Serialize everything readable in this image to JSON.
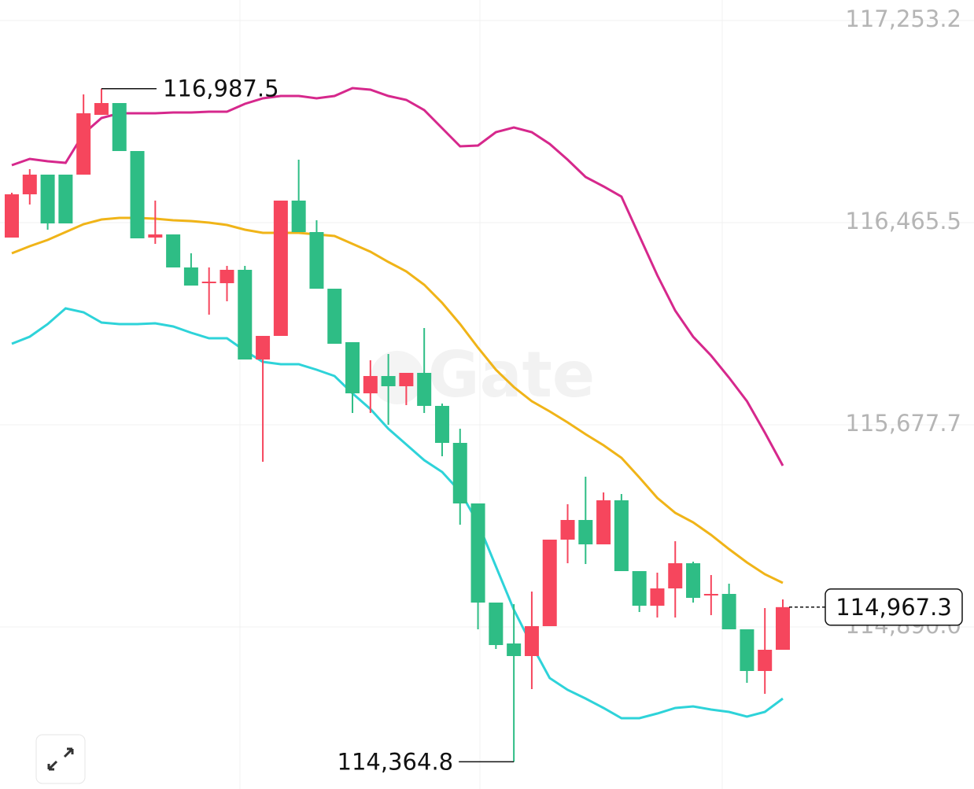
{
  "chart_data": {
    "type": "candlestick",
    "watermark": "Gate",
    "ylim": [
      114258.7,
      117332.9
    ],
    "yticks": [
      {
        "value": 117253.2,
        "label": "117,253.2"
      },
      {
        "value": 116465.5,
        "label": "116,465.5"
      },
      {
        "value": 115677.7,
        "label": "115,677.7"
      },
      {
        "value": 114890.0,
        "label": "114,890.0"
      }
    ],
    "grid": true,
    "up_color": "#f6465d",
    "down_color": "#2ebd85",
    "open": [
      116407.3,
      116575.8,
      116652.5,
      116652.5,
      116652.5,
      116885.4,
      116931.4,
      116744.4,
      116407.3,
      116419.5,
      116290.8,
      116229.5,
      116229.5,
      116281.6,
      115932.2,
      116024.1,
      116551.3,
      116428.7,
      116208.0,
      115999.6,
      115800.4,
      115867.8,
      115828.0,
      115880.1,
      115751.4,
      115607.3,
      115371.3,
      114985.1,
      114825.7,
      114776.7,
      114893.2,
      115230.3,
      115306.9,
      115211.9,
      115383.6,
      115107.7,
      114972.8,
      115040.3,
      115138.4,
      115012.7,
      115018.8,
      114880.9,
      114718.5,
      114801.2
    ],
    "high": [
      116582.0,
      116673.9,
      116652.5,
      116652.5,
      116965.1,
      116987.5,
      116931.4,
      116744.4,
      116551.3,
      116419.5,
      116346.0,
      116290.8,
      116296.9,
      116296.9,
      116024.1,
      116551.3,
      116710.7,
      116474.7,
      116208.0,
      115999.6,
      115929.1,
      115953.6,
      115880.1,
      116054.8,
      115760.6,
      115662.5,
      115371.3,
      114985.1,
      114979.0,
      115028.0,
      115230.3,
      115368.2,
      115475.5,
      115414.2,
      115408.1,
      115107.7,
      115101.6,
      115224.2,
      115144.5,
      115092.4,
      115058.7,
      114880.9,
      114963.7,
      114997.4
    ],
    "low": [
      116407.3,
      116536.0,
      116437.9,
      116462.4,
      116652.5,
      116885.4,
      116744.4,
      116404.2,
      116382.7,
      116290.8,
      116220.3,
      116106.9,
      116159.0,
      115932.2,
      115533.7,
      116024.1,
      116428.7,
      116208.0,
      115993.5,
      115723.8,
      115723.8,
      115677.8,
      115754.4,
      115723.8,
      115555.2,
      115288.5,
      114880.9,
      114804.3,
      114364.8,
      114648.0,
      114893.2,
      115138.4,
      115135.3,
      115211.9,
      115107.7,
      114948.3,
      114926.9,
      114926.9,
      114985.1,
      114936.1,
      114880.9,
      114672.5,
      114629.6,
      114801.2
    ],
    "close": [
      116575.8,
      116652.5,
      116462.4,
      116462.4,
      116891.5,
      116931.4,
      116744.4,
      116404.2,
      116419.5,
      116290.8,
      116220.3,
      116235.6,
      116281.6,
      115932.2,
      116024.1,
      116551.3,
      116428.7,
      116208.0,
      115993.5,
      115800.4,
      115867.8,
      115828.0,
      115880.1,
      115751.4,
      115607.3,
      115371.3,
      114985.1,
      114819.6,
      114776.7,
      114893.2,
      115230.3,
      115306.9,
      115211.9,
      115383.6,
      115107.7,
      114972.8,
      115040.3,
      115138.4,
      115003.5,
      115018.8,
      114880.9,
      114718.5,
      114801.2,
      114967.3
    ],
    "overlays": [
      {
        "color": "#d6288c",
        "values": [
          116689.3,
          116713.8,
          116704.6,
          116698.4,
          116811.8,
          116873.1,
          116891.5,
          116891.5,
          116891.5,
          116894.6,
          116894.6,
          116897.7,
          116897.7,
          116928.3,
          116949.8,
          116959.0,
          116959.0,
          116949.8,
          116959.0,
          116989.6,
          116983.5,
          116959.0,
          116943.6,
          116903.8,
          116833.3,
          116762.8,
          116765.9,
          116818.0,
          116836.4,
          116818.0,
          116772.0,
          116710.7,
          116643.3,
          116606.5,
          116566.6,
          116413.4,
          116260.1,
          116122.2,
          116021.1,
          115947.5,
          115861.7,
          115769.7,
          115647.1,
          115518.4
        ]
      },
      {
        "color": "#f0b418",
        "values": [
          116346.0,
          116373.6,
          116398.1,
          116428.7,
          116459.4,
          116477.8,
          116483.9,
          116483.9,
          116480.8,
          116474.7,
          116471.6,
          116465.5,
          116456.3,
          116437.9,
          116425.7,
          116425.7,
          116425.7,
          116419.5,
          116413.4,
          116382.7,
          116352.1,
          116312.3,
          116275.5,
          116223.4,
          116152.9,
          116070.1,
          115978.2,
          115892.3,
          115824.9,
          115769.7,
          115729.9,
          115687.0,
          115641.0,
          115598.1,
          115549.1,
          115472.4,
          115392.8,
          115334.5,
          115297.7,
          115248.7,
          115193.5,
          115141.4,
          115095.4,
          115061.7
        ]
      },
      {
        "color": "#2ed3d9",
        "values": [
          115993.5,
          116021.1,
          116070.1,
          116131.4,
          116116.1,
          116076.2,
          116070.1,
          116070.1,
          116073.2,
          116060.9,
          116036.4,
          116014.9,
          116014.9,
          115965.9,
          115923.0,
          115913.8,
          115913.8,
          115892.3,
          115867.8,
          115800.4,
          115739.1,
          115662.5,
          115601.2,
          115539.9,
          115493.9,
          115417.3,
          115294.7,
          115126.1,
          114957.5,
          114819.6,
          114690.9,
          114644.9,
          114611.2,
          114574.4,
          114534.6,
          114534.6,
          114552.9,
          114574.4,
          114580.5,
          114568.3,
          114559.1,
          114540.7,
          114559.1,
          114611.2
        ]
      }
    ],
    "high_label": {
      "value": 116987.5,
      "label": "116,987.5"
    },
    "low_label": {
      "value": 114364.8,
      "label": "114,364.8"
    },
    "last_price": {
      "value": 114967.3,
      "label": "114,967.3"
    }
  }
}
